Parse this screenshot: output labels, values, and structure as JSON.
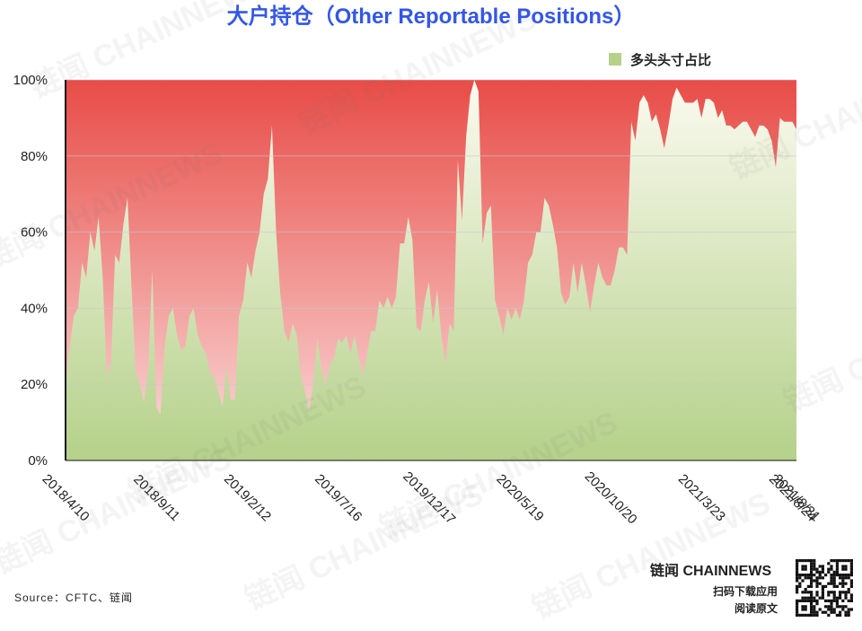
{
  "chart_data": {
    "type": "area",
    "title": "大户持仓（Other Reportable Positions）",
    "source": "Source：CFTC、链闻",
    "watermark": "链闻 CHAINNEWS",
    "branding": {
      "logo": "链闻 CHAINNEWS",
      "line1": "扫码下载应用",
      "line2": "阅读原文"
    },
    "legend": "top-right",
    "grid": true,
    "ylim": [
      0,
      100
    ],
    "yticks": [
      {
        "value": 0,
        "label": "0%"
      },
      {
        "value": 20,
        "label": "20%"
      },
      {
        "value": 40,
        "label": "40%"
      },
      {
        "value": 60,
        "label": "60%"
      },
      {
        "value": 80,
        "label": "80%"
      },
      {
        "value": 100,
        "label": "100%"
      }
    ],
    "categories": [
      "2018/4/10",
      null,
      null,
      null,
      null,
      null,
      null,
      null,
      null,
      null,
      null,
      null,
      null,
      null,
      null,
      null,
      null,
      null,
      null,
      null,
      null,
      null,
      "2018/9/11",
      null,
      null,
      null,
      null,
      null,
      null,
      null,
      null,
      null,
      null,
      null,
      null,
      null,
      null,
      null,
      null,
      null,
      null,
      null,
      null,
      null,
      "2019/2/12",
      null,
      null,
      null,
      null,
      null,
      null,
      null,
      null,
      null,
      null,
      null,
      null,
      null,
      null,
      null,
      null,
      null,
      null,
      null,
      null,
      null,
      "2019/7/16",
      null,
      null,
      null,
      null,
      null,
      null,
      null,
      null,
      null,
      null,
      null,
      null,
      null,
      null,
      null,
      null,
      null,
      null,
      null,
      null,
      null,
      "2019/12/17",
      null,
      null,
      null,
      null,
      null,
      null,
      null,
      null,
      null,
      null,
      null,
      null,
      null,
      null,
      null,
      null,
      null,
      null,
      null,
      null,
      null,
      "2020/5/19",
      null,
      null,
      null,
      null,
      null,
      null,
      null,
      null,
      null,
      null,
      null,
      null,
      null,
      null,
      null,
      null,
      null,
      null,
      null,
      null,
      null,
      "2020/10/20",
      null,
      null,
      null,
      null,
      null,
      null,
      null,
      null,
      null,
      null,
      null,
      null,
      null,
      null,
      null,
      null,
      null,
      null,
      null,
      null,
      null,
      "2021/3/23",
      null,
      null,
      null,
      null,
      null,
      null,
      null,
      null,
      null,
      null,
      null,
      null,
      null,
      null,
      null,
      null,
      null,
      null,
      null,
      null,
      null,
      "2021/8/24",
      "2021/8/31"
    ],
    "series": [
      {
        "name": "多头头寸占比",
        "color": "#b5d18a",
        "values": [
          20,
          30,
          38,
          40,
          52,
          48,
          60,
          55,
          64,
          48,
          22,
          26,
          54,
          52,
          62,
          69,
          45,
          23,
          20,
          15,
          24,
          50,
          14,
          12,
          30,
          38,
          40,
          33,
          29,
          30,
          38,
          40,
          33,
          30,
          28,
          23,
          22,
          18,
          14,
          25,
          16,
          16,
          38,
          42,
          52,
          48,
          55,
          60,
          70,
          74,
          88,
          60,
          44,
          34,
          31,
          36,
          33,
          22,
          18,
          13,
          20,
          32,
          24,
          20,
          25,
          27,
          32,
          31,
          33,
          28,
          33,
          27,
          22,
          28,
          34,
          34,
          42,
          40,
          43,
          40,
          43,
          57,
          57,
          64,
          58,
          35,
          34,
          42,
          47,
          36,
          45,
          33,
          25,
          36,
          34,
          79,
          63,
          85,
          96,
          100,
          97,
          57,
          65,
          67,
          42,
          38,
          33,
          40,
          37,
          40,
          37,
          42,
          52,
          54,
          60,
          60,
          69,
          67,
          62,
          56,
          44,
          41,
          43,
          52,
          44,
          52,
          46,
          39,
          46,
          52,
          48,
          46,
          46,
          50,
          56,
          56,
          54,
          89,
          84,
          94,
          96,
          94,
          89,
          91,
          87,
          82,
          88,
          95,
          98,
          96,
          94,
          94,
          94,
          95,
          90,
          95,
          95,
          94,
          90,
          92,
          88,
          88,
          87,
          88,
          89,
          89,
          87,
          85,
          88,
          88,
          87,
          84,
          77,
          90,
          89,
          89,
          89,
          87
        ]
      }
    ]
  }
}
